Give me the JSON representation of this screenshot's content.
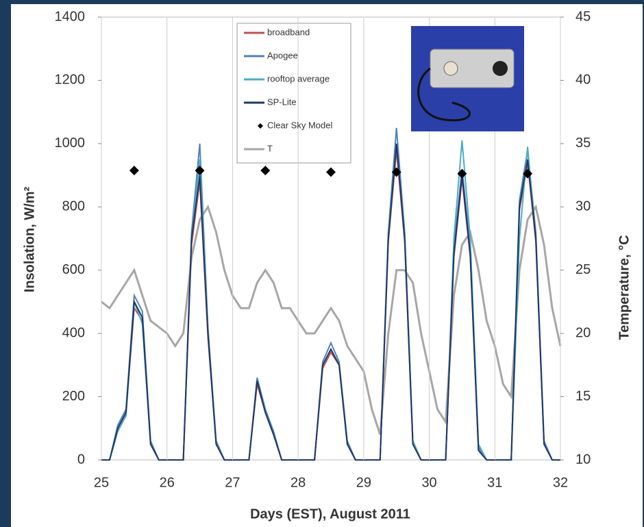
{
  "chart_data": {
    "type": "line",
    "x_label": "Days (EST), August 2011",
    "y_label": "Insolation, W/m²",
    "y2_label": "Temperature, °C",
    "x": [
      25,
      25.125,
      25.25,
      25.375,
      25.5,
      25.625,
      25.75,
      25.875,
      26,
      26.125,
      26.25,
      26.375,
      26.5,
      26.625,
      26.75,
      26.875,
      27,
      27.125,
      27.25,
      27.375,
      27.5,
      27.625,
      27.75,
      27.875,
      28,
      28.125,
      28.25,
      28.375,
      28.5,
      28.625,
      28.75,
      28.875,
      29,
      29.125,
      29.25,
      29.375,
      29.5,
      29.625,
      29.75,
      29.875,
      30,
      30.125,
      30.25,
      30.375,
      30.5,
      30.625,
      30.75,
      30.875,
      31,
      31.125,
      31.25,
      31.375,
      31.5,
      31.625,
      31.75,
      31.875,
      32
    ],
    "xlim": [
      25,
      32
    ],
    "xticks": [
      25,
      26,
      27,
      28,
      29,
      30,
      31,
      32
    ],
    "ylim": [
      0,
      1400
    ],
    "yticks": [
      0,
      200,
      400,
      600,
      800,
      1000,
      1200,
      1400
    ],
    "y2lim": [
      10,
      45
    ],
    "y2ticks": [
      10,
      15,
      20,
      25,
      30,
      35,
      40,
      45
    ],
    "series": [
      {
        "name": "broadband",
        "color": "#c0504d",
        "values": [
          0,
          0,
          100,
          150,
          480,
          440,
          50,
          0,
          0,
          0,
          0,
          680,
          880,
          390,
          50,
          0,
          0,
          0,
          0,
          240,
          150,
          80,
          0,
          0,
          0,
          0,
          0,
          290,
          340,
          300,
          50,
          0,
          0,
          0,
          0,
          690,
          980,
          690,
          50,
          0,
          0,
          0,
          0,
          640,
          890,
          640,
          30,
          0,
          0,
          0,
          0,
          790,
          940,
          690,
          50,
          0,
          0
        ]
      },
      {
        "name": "Apogee",
        "color": "#4f81bd",
        "values": [
          0,
          0,
          110,
          160,
          520,
          470,
          60,
          0,
          0,
          0,
          0,
          720,
          1000,
          420,
          60,
          0,
          0,
          0,
          0,
          260,
          160,
          90,
          0,
          0,
          0,
          0,
          0,
          310,
          370,
          310,
          60,
          0,
          0,
          0,
          0,
          720,
          1050,
          720,
          60,
          0,
          0,
          0,
          0,
          670,
          920,
          670,
          40,
          0,
          0,
          0,
          0,
          820,
          980,
          720,
          60,
          0,
          0
        ]
      },
      {
        "name": "rooftop average",
        "color": "#4bacc6",
        "values": [
          0,
          0,
          90,
          140,
          500,
          430,
          50,
          0,
          0,
          0,
          0,
          700,
          950,
          410,
          50,
          0,
          0,
          0,
          0,
          250,
          150,
          80,
          0,
          0,
          0,
          0,
          0,
          300,
          350,
          300,
          50,
          0,
          0,
          0,
          0,
          720,
          1000,
          720,
          60,
          0,
          0,
          0,
          0,
          700,
          1010,
          700,
          50,
          0,
          0,
          0,
          0,
          700,
          990,
          700,
          50,
          0,
          0
        ]
      },
      {
        "name": "SP-Lite",
        "color": "#1f3864",
        "values": [
          0,
          0,
          100,
          150,
          500,
          450,
          50,
          0,
          0,
          0,
          0,
          700,
          900,
          400,
          50,
          0,
          0,
          0,
          0,
          250,
          150,
          80,
          0,
          0,
          0,
          0,
          0,
          300,
          350,
          300,
          50,
          0,
          0,
          0,
          0,
          700,
          1000,
          700,
          50,
          0,
          0,
          0,
          0,
          650,
          900,
          650,
          30,
          0,
          0,
          0,
          0,
          800,
          950,
          700,
          50,
          0,
          0
        ]
      },
      {
        "name": "Clear Sky Model",
        "color": "#000000",
        "marker": "diamond",
        "x": [
          25.5,
          26.5,
          27.5,
          28.5,
          29.5,
          30.5,
          31.5
        ],
        "values": [
          915,
          915,
          915,
          910,
          910,
          905,
          905
        ]
      },
      {
        "name": "T",
        "color": "#a6a6a6",
        "axis": "y2",
        "values": [
          22.5,
          22,
          23,
          24,
          25,
          23,
          21,
          20.5,
          20,
          19,
          20,
          26,
          29,
          30,
          28,
          25,
          23,
          22,
          22,
          24,
          25,
          24,
          22,
          22,
          21,
          20,
          20,
          21,
          22,
          21,
          19,
          18,
          17,
          14,
          12,
          20,
          25,
          25,
          24,
          20,
          17,
          14,
          13,
          23,
          27,
          28,
          25,
          21,
          19,
          16,
          15,
          25,
          29,
          30,
          27,
          22,
          19
        ]
      }
    ]
  }
}
